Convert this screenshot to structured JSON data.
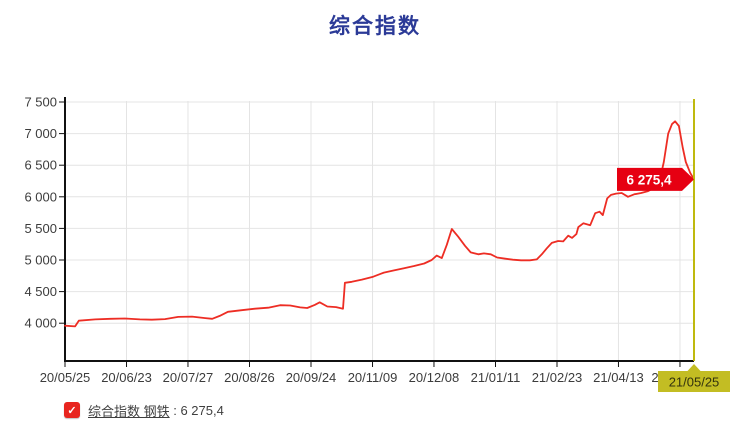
{
  "title": "综合指数",
  "legend": {
    "series_label": "综合指数 钢铁",
    "separator": " : ",
    "value": "6 275,4",
    "checkmark": "✓"
  },
  "colors": {
    "title": "#2b3a97",
    "line": "#ed2d24",
    "badge_bg": "#e60012",
    "badge_text": "#ffffff",
    "crosshair": "#bfb90e",
    "tag_bg": "#c3bd23",
    "tag_text": "#33330e",
    "grid": "#e4e4e4",
    "axis": "#111111",
    "tick_text": "#3c3c3c",
    "checkbox": "#e8251f"
  },
  "chart_data": {
    "type": "line",
    "title": "综合指数",
    "grid": true,
    "legend_position": "bottom-left",
    "y_axis": {
      "vmax": 7500,
      "vmin": 4000,
      "ticks": [
        {
          "v": 7500,
          "label": "7 500"
        },
        {
          "v": 7000,
          "label": "7 000"
        },
        {
          "v": 6500,
          "label": "6 500"
        },
        {
          "v": 6000,
          "label": "6 000"
        },
        {
          "v": 5500,
          "label": "5 500"
        },
        {
          "v": 5000,
          "label": "5 000"
        },
        {
          "v": 4500,
          "label": "4 500"
        },
        {
          "v": 4000,
          "label": "4 000"
        }
      ]
    },
    "x_axis": {
      "ticks": [
        {
          "label": "20/05/25",
          "t": 0.0
        },
        {
          "label": "20/06/23",
          "t": 0.0978
        },
        {
          "label": "20/07/27",
          "t": 0.1955
        },
        {
          "label": "20/08/26",
          "t": 0.2933
        },
        {
          "label": "20/09/24",
          "t": 0.3911
        },
        {
          "label": "20/11/09",
          "t": 0.4889
        },
        {
          "label": "20/12/08",
          "t": 0.5866
        },
        {
          "label": "21/01/11",
          "t": 0.6844
        },
        {
          "label": "21/02/23",
          "t": 0.7822
        },
        {
          "label": "21/04/13",
          "t": 0.8799
        },
        {
          "label": "2",
          "t": 0.938,
          "partial": true
        },
        {
          "label": "",
          "t": 0.9777
        }
      ]
    },
    "crosshair": {
      "t": 1.0,
      "date_label": "21/05/25",
      "value": 6275.4,
      "value_label": "6 275,4"
    },
    "series": [
      {
        "name": "综合指数 钢铁",
        "last_value": 6275.4,
        "points": [
          [
            0.0,
            3960
          ],
          [
            0.016,
            3950
          ],
          [
            0.022,
            4040
          ],
          [
            0.048,
            4060
          ],
          [
            0.072,
            4070
          ],
          [
            0.095,
            4075
          ],
          [
            0.119,
            4060
          ],
          [
            0.138,
            4055
          ],
          [
            0.159,
            4065
          ],
          [
            0.18,
            4100
          ],
          [
            0.202,
            4105
          ],
          [
            0.223,
            4080
          ],
          [
            0.234,
            4070
          ],
          [
            0.246,
            4115
          ],
          [
            0.259,
            4180
          ],
          [
            0.281,
            4205
          ],
          [
            0.302,
            4230
          ],
          [
            0.323,
            4245
          ],
          [
            0.342,
            4285
          ],
          [
            0.358,
            4280
          ],
          [
            0.374,
            4250
          ],
          [
            0.385,
            4240
          ],
          [
            0.397,
            4290
          ],
          [
            0.405,
            4330
          ],
          [
            0.417,
            4265
          ],
          [
            0.431,
            4255
          ],
          [
            0.442,
            4230
          ],
          [
            0.445,
            4640
          ],
          [
            0.456,
            4655
          ],
          [
            0.472,
            4690
          ],
          [
            0.49,
            4735
          ],
          [
            0.507,
            4800
          ],
          [
            0.523,
            4835
          ],
          [
            0.539,
            4870
          ],
          [
            0.555,
            4905
          ],
          [
            0.571,
            4945
          ],
          [
            0.583,
            5000
          ],
          [
            0.591,
            5070
          ],
          [
            0.599,
            5030
          ],
          [
            0.607,
            5240
          ],
          [
            0.615,
            5490
          ],
          [
            0.625,
            5370
          ],
          [
            0.636,
            5225
          ],
          [
            0.645,
            5120
          ],
          [
            0.657,
            5090
          ],
          [
            0.666,
            5105
          ],
          [
            0.677,
            5090
          ],
          [
            0.687,
            5040
          ],
          [
            0.7,
            5020
          ],
          [
            0.712,
            5005
          ],
          [
            0.725,
            4995
          ],
          [
            0.739,
            4995
          ],
          [
            0.75,
            5010
          ],
          [
            0.758,
            5090
          ],
          [
            0.766,
            5185
          ],
          [
            0.774,
            5270
          ],
          [
            0.784,
            5300
          ],
          [
            0.792,
            5295
          ],
          [
            0.8,
            5385
          ],
          [
            0.806,
            5350
          ],
          [
            0.813,
            5410
          ],
          [
            0.816,
            5520
          ],
          [
            0.824,
            5580
          ],
          [
            0.835,
            5550
          ],
          [
            0.843,
            5740
          ],
          [
            0.85,
            5765
          ],
          [
            0.855,
            5710
          ],
          [
            0.862,
            5975
          ],
          [
            0.868,
            6030
          ],
          [
            0.876,
            6050
          ],
          [
            0.885,
            6060
          ],
          [
            0.895,
            6000
          ],
          [
            0.905,
            6040
          ],
          [
            0.916,
            6060
          ],
          [
            0.927,
            6090
          ],
          [
            0.938,
            6150
          ],
          [
            0.946,
            6280
          ],
          [
            0.952,
            6550
          ],
          [
            0.959,
            7000
          ],
          [
            0.965,
            7150
          ],
          [
            0.97,
            7195
          ],
          [
            0.976,
            7120
          ],
          [
            0.982,
            6780
          ],
          [
            0.987,
            6550
          ],
          [
            0.994,
            6380
          ],
          [
            1.0,
            6275.4
          ]
        ]
      }
    ]
  }
}
